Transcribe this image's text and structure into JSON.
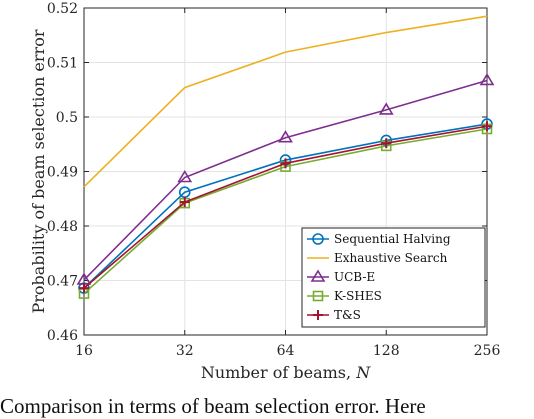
{
  "chart_data": {
    "type": "line",
    "x": [
      16,
      32,
      64,
      128,
      256
    ],
    "x_scale": "log2",
    "categories": [
      "16",
      "32",
      "64",
      "128",
      "256"
    ],
    "xlabel": "Number of beams, ",
    "xlabel_var": "N",
    "ylabel": "Probability of beam selection error",
    "ylim": [
      0.46,
      0.52
    ],
    "yticks": [
      "0.46",
      "0.47",
      "0.48",
      "0.49",
      "0.5",
      "0.51",
      "0.52"
    ],
    "grid": true,
    "legend_position": "bottom-right",
    "series": [
      {
        "name": "Sequential Halving",
        "color": "#0072BD",
        "marker": "circle",
        "values": [
          0.4686,
          0.4862,
          0.4921,
          0.4957,
          0.4987
        ]
      },
      {
        "name": "Exhaustive Search",
        "color": "#EDB120",
        "marker": "none",
        "values": [
          0.4872,
          0.5054,
          0.5119,
          0.5155,
          0.5185
        ]
      },
      {
        "name": "UCB-E",
        "color": "#7E2F8E",
        "marker": "triangle",
        "values": [
          0.4701,
          0.4889,
          0.4962,
          0.5013,
          0.5067
        ]
      },
      {
        "name": "K-SHES",
        "color": "#77AC30",
        "marker": "square",
        "values": [
          0.4676,
          0.4842,
          0.4909,
          0.4947,
          0.4978
        ]
      },
      {
        "name": "T&S",
        "color": "#A2142F",
        "marker": "plus",
        "values": [
          0.4686,
          0.4844,
          0.4915,
          0.4952,
          0.4983
        ]
      }
    ]
  },
  "caption": "Comparison in terms of beam selection error. Here"
}
